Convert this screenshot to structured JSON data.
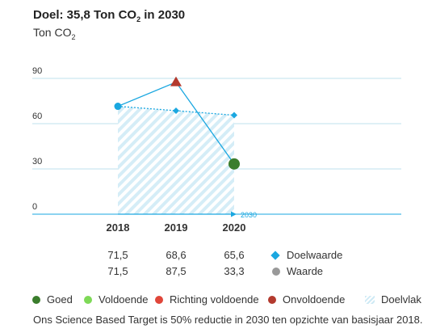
{
  "title_text": "Doel: 35,8 Ton CO",
  "title_tail": " in 2030",
  "subtitle_text": "Ton CO",
  "co2_sub": "2",
  "footnote": "Ons Science Based Target is 50% reductie in 2030 ten opzichte van basisjaar 2018.",
  "colors": {
    "goed": "#3a7d2c",
    "voldoende": "#7ed957",
    "richting": "#e0463a",
    "onvoldoende": "#b33a2e",
    "doel": "#1aa7e0",
    "waarde": "#999999",
    "grid": "#bfe2ee",
    "hatch": "#cfeaf5"
  },
  "chart_data": {
    "type": "line",
    "categories": [
      "2018",
      "2019",
      "2020"
    ],
    "target_year_label": "2030",
    "ylim": [
      0,
      90
    ],
    "yticks": [
      "0",
      "30",
      "60",
      "90"
    ],
    "series": [
      {
        "name": "Doelwaarde",
        "values": [
          71.5,
          68.6,
          65.6
        ],
        "labels": [
          "71,5",
          "68,6",
          "65,6"
        ]
      },
      {
        "name": "Waarde",
        "values": [
          71.5,
          87.5,
          33.3
        ],
        "labels": [
          "71,5",
          "87,5",
          "33,3"
        ],
        "status": [
          "doel",
          "onvoldoende",
          "goed"
        ]
      }
    ]
  },
  "legend": [
    {
      "label": "Goed",
      "kind": "dot",
      "color": "#3a7d2c"
    },
    {
      "label": "Voldoende",
      "kind": "dot",
      "color": "#7ed957"
    },
    {
      "label": "Richting voldoende",
      "kind": "dot",
      "color": "#e0463a"
    },
    {
      "label": "Onvoldoende",
      "kind": "dot",
      "color": "#b33a2e"
    },
    {
      "label": "Doelvlak",
      "kind": "hatch",
      "color": "#cfeaf5"
    }
  ]
}
